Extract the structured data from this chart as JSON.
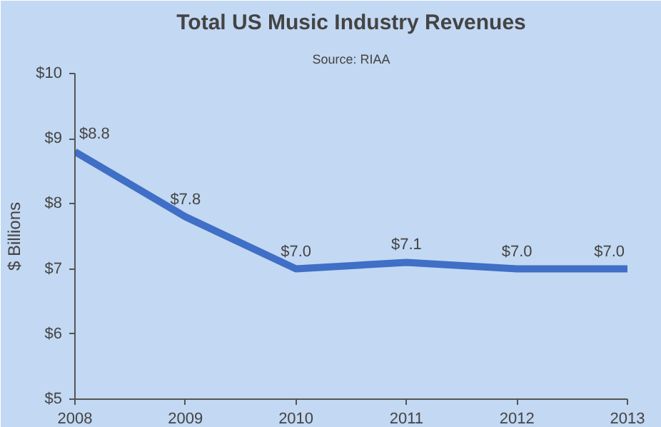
{
  "chart_data": {
    "type": "line",
    "title": "Total US Music Industry Revenues",
    "subtitle": "Source: RIAA",
    "ylabel": "$ Billions",
    "x": [
      2008,
      2009,
      2010,
      2011,
      2012,
      2013
    ],
    "series": [
      {
        "color": "#3f6fc6",
        "values": [
          8.8,
          7.8,
          7.0,
          7.1,
          7.0,
          7.0
        ],
        "value_labels": [
          "$8.8",
          "$7.8",
          "$7.0",
          "$7.1",
          "$7.0",
          "$7.0"
        ]
      }
    ],
    "xlim": [
      2008,
      2013
    ],
    "xticks": [
      2008,
      2009,
      2010,
      2011,
      2012,
      2013
    ],
    "ylim": [
      5,
      10
    ],
    "yticks": [
      {
        "value": 5,
        "label": "$5"
      },
      {
        "value": 6,
        "label": "$6"
      },
      {
        "value": 7,
        "label": "$7"
      },
      {
        "value": 8,
        "label": "$8"
      },
      {
        "value": 9,
        "label": "$9"
      },
      {
        "value": 10,
        "label": "$10"
      }
    ],
    "grid": false,
    "marker": "none",
    "line_style": "solid"
  }
}
